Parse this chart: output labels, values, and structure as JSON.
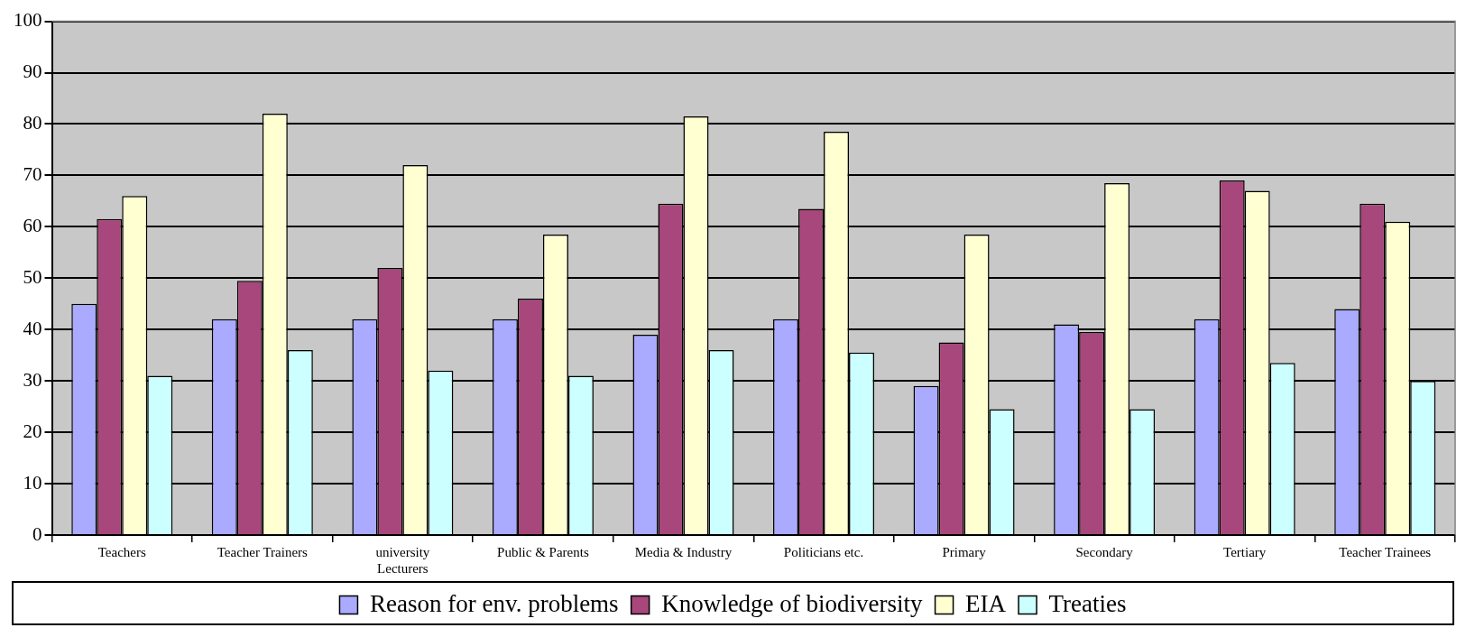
{
  "chart_data": {
    "type": "bar",
    "categories": [
      "Teachers",
      "Teacher Trainers",
      "university\nLecturers",
      "Public & Parents",
      "Media & Industry",
      "Politicians etc.",
      "Primary",
      "Secondary",
      "Tertiary",
      "Teacher Trainees"
    ],
    "series": [
      {
        "name": "Reason for env. problems",
        "color": "#aaaaff",
        "values": [
          45,
          42,
          42,
          42,
          39,
          42,
          29,
          41,
          42,
          44
        ]
      },
      {
        "name": "Knowledge of biodiversity",
        "color": "#a8477b",
        "values": [
          61.5,
          49.5,
          52,
          46,
          64.5,
          63.5,
          37.5,
          39.5,
          69,
          64.5
        ]
      },
      {
        "name": "EIA",
        "color": "#ffffd2",
        "values": [
          66,
          82,
          72,
          58.5,
          81.5,
          78.5,
          58.5,
          68.5,
          67,
          61
        ]
      },
      {
        "name": "Treaties",
        "color": "#ccffff",
        "values": [
          31,
          36,
          32,
          31,
          36,
          35.5,
          24.5,
          24.5,
          33.5,
          30
        ]
      }
    ],
    "ylim": [
      0,
      100
    ],
    "yticks": [
      0,
      10,
      20,
      30,
      40,
      50,
      60,
      70,
      80,
      90,
      100
    ],
    "grid": "y",
    "legend": "bottom"
  }
}
